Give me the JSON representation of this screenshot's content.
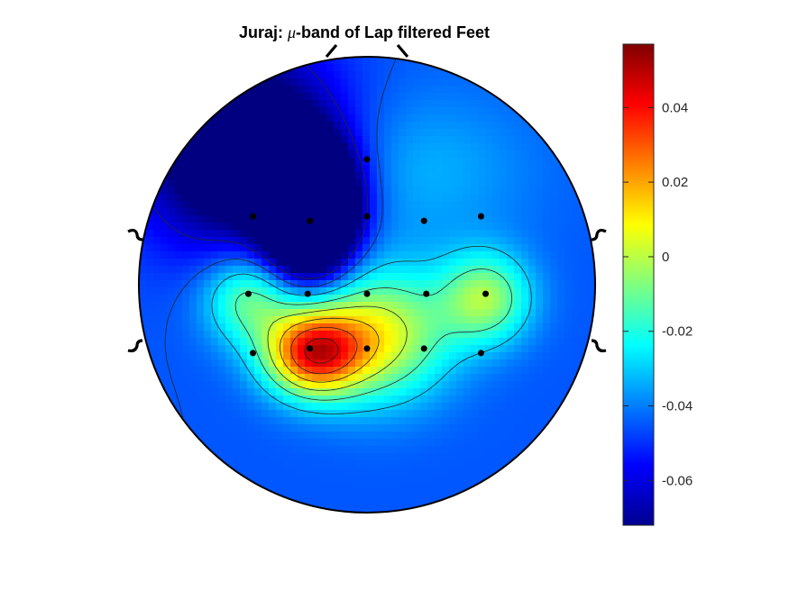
{
  "chart_data": {
    "type": "heatmap",
    "subtype": "eeg-topographic-map",
    "title": "Juraj: μ-band of Lap filtered Feet",
    "title_parts": {
      "pre": "Juraj: ",
      "mu": "μ",
      "post": "-band of Lap filtered Feet"
    },
    "colormap": "jet",
    "colorbar": {
      "range": [
        -0.072,
        0.057
      ],
      "ticks": [
        0.04,
        0.02,
        0,
        -0.02,
        -0.04,
        -0.06
      ],
      "tick_labels": [
        "0.04",
        "0.02",
        "0",
        "-0.02",
        "-0.04",
        "-0.06"
      ]
    },
    "head_outline": true,
    "contour_lines": true,
    "electrodes": [
      {
        "x": 0.0,
        "y": 0.55
      },
      {
        "x": -0.5,
        "y": 0.3
      },
      {
        "x": -0.25,
        "y": 0.28
      },
      {
        "x": 0.0,
        "y": 0.3
      },
      {
        "x": 0.25,
        "y": 0.28
      },
      {
        "x": 0.5,
        "y": 0.3
      },
      {
        "x": -0.52,
        "y": -0.04
      },
      {
        "x": -0.26,
        "y": -0.04
      },
      {
        "x": 0.0,
        "y": -0.04
      },
      {
        "x": 0.26,
        "y": -0.04
      },
      {
        "x": 0.52,
        "y": -0.04
      },
      {
        "x": -0.5,
        "y": -0.3
      },
      {
        "x": -0.25,
        "y": -0.28
      },
      {
        "x": 0.0,
        "y": -0.28
      },
      {
        "x": 0.25,
        "y": -0.28
      },
      {
        "x": 0.5,
        "y": -0.3
      }
    ],
    "field_sources": [
      {
        "x": -0.25,
        "y": 0.33,
        "sx": 0.13,
        "sy": 0.18,
        "amp": -0.115
      },
      {
        "x": -0.55,
        "y": 0.6,
        "sx": 0.3,
        "sy": 0.3,
        "amp": -0.05
      },
      {
        "x": -0.24,
        "y": -0.3,
        "sx": 0.15,
        "sy": 0.13,
        "amp": 0.075
      },
      {
        "x": 0.05,
        "y": -0.22,
        "sx": 0.22,
        "sy": 0.2,
        "amp": 0.05
      },
      {
        "x": 0.52,
        "y": -0.06,
        "sx": 0.14,
        "sy": 0.14,
        "amp": 0.04
      },
      {
        "x": -0.52,
        "y": -0.06,
        "sx": 0.14,
        "sy": 0.14,
        "amp": 0.035
      },
      {
        "x": 0.22,
        "y": 0.5,
        "sx": 0.35,
        "sy": 0.25,
        "amp": 0.012
      }
    ],
    "field_baseline": -0.045
  },
  "colors": {
    "outline": "#000000",
    "contour": "#262626",
    "electrode": "#000000",
    "background": "#ffffff"
  }
}
